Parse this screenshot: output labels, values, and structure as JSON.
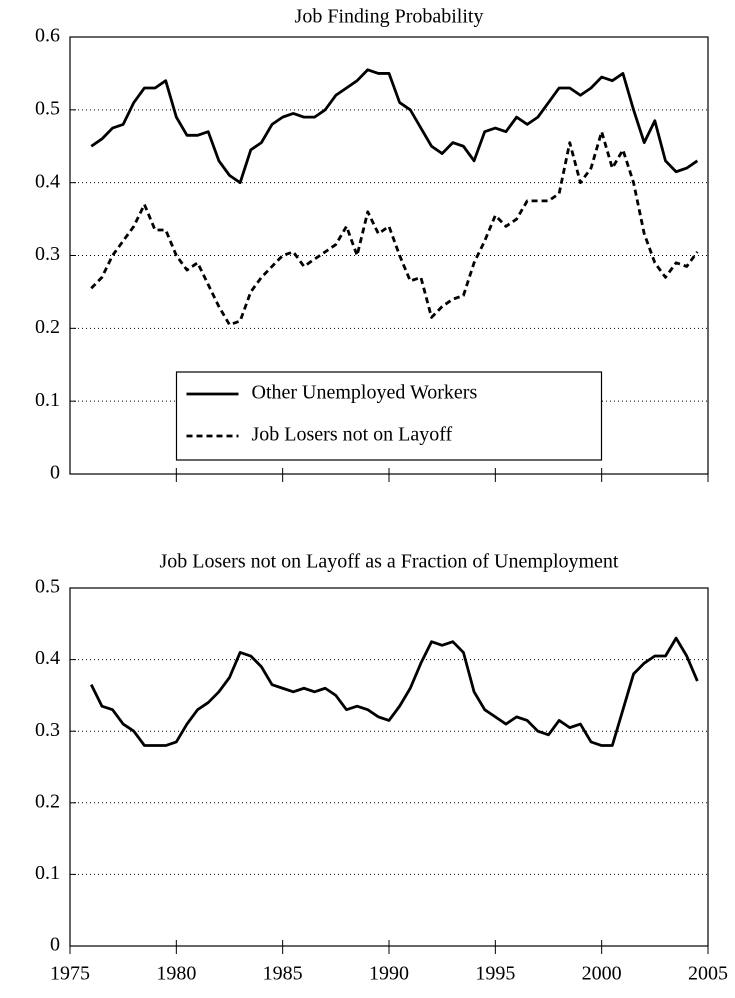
{
  "chart_data": [
    {
      "type": "line",
      "title": "Job Finding Probability",
      "x": [
        1976,
        1976.5,
        1977,
        1977.5,
        1978,
        1978.5,
        1979,
        1979.5,
        1980,
        1980.5,
        1981,
        1981.5,
        1982,
        1982.5,
        1983,
        1983.5,
        1984,
        1984.5,
        1985,
        1985.5,
        1986,
        1986.5,
        1987,
        1987.5,
        1988,
        1988.5,
        1989,
        1989.5,
        1990,
        1990.5,
        1991,
        1991.5,
        1992,
        1992.5,
        1993,
        1993.5,
        1994,
        1994.5,
        1995,
        1995.5,
        1996,
        1996.5,
        1997,
        1997.5,
        1998,
        1998.5,
        1999,
        1999.5,
        2000,
        2000.5,
        2001,
        2001.5,
        2002,
        2002.5,
        2003,
        2003.5,
        2004,
        2004.5
      ],
      "series": [
        {
          "name": "Other Unemployed Workers",
          "color": "#000000",
          "linestyle": "solid",
          "values": [
            0.45,
            0.46,
            0.475,
            0.48,
            0.51,
            0.53,
            0.53,
            0.54,
            0.49,
            0.465,
            0.465,
            0.47,
            0.43,
            0.41,
            0.4,
            0.445,
            0.455,
            0.48,
            0.49,
            0.495,
            0.49,
            0.49,
            0.5,
            0.52,
            0.53,
            0.54,
            0.555,
            0.55,
            0.55,
            0.51,
            0.5,
            0.475,
            0.45,
            0.44,
            0.455,
            0.45,
            0.43,
            0.47,
            0.475,
            0.47,
            0.49,
            0.48,
            0.49,
            0.51,
            0.53,
            0.53,
            0.52,
            0.53,
            0.545,
            0.54,
            0.55,
            0.5,
            0.455,
            0.485,
            0.43,
            0.415,
            0.42,
            0.43
          ]
        },
        {
          "name": "Job Losers not on Layoff",
          "color": "#000000",
          "linestyle": "dashed",
          "values": [
            0.255,
            0.27,
            0.3,
            0.32,
            0.34,
            0.37,
            0.335,
            0.335,
            0.3,
            0.28,
            0.29,
            0.26,
            0.23,
            0.205,
            0.21,
            0.25,
            0.27,
            0.285,
            0.3,
            0.305,
            0.285,
            0.295,
            0.305,
            0.315,
            0.34,
            0.3,
            0.36,
            0.33,
            0.34,
            0.3,
            0.265,
            0.27,
            0.215,
            0.23,
            0.24,
            0.245,
            0.29,
            0.32,
            0.355,
            0.34,
            0.35,
            0.375,
            0.375,
            0.375,
            0.385,
            0.455,
            0.4,
            0.42,
            0.47,
            0.42,
            0.445,
            0.4,
            0.33,
            0.29,
            0.27,
            0.29,
            0.285,
            0.305
          ]
        }
      ],
      "xlim": [
        1975,
        2005
      ],
      "xticks": [
        1980,
        1985,
        1990,
        1995,
        2000,
        2005
      ],
      "ylim": [
        0,
        0.6
      ],
      "yticks": [
        0,
        0.1,
        0.2,
        0.3,
        0.4,
        0.5,
        0.6
      ],
      "grid": true,
      "legend": "lower center"
    },
    {
      "type": "line",
      "title": "Job Losers not on Layoff as a Fraction of Unemployment",
      "x": [
        1976,
        1976.5,
        1977,
        1977.5,
        1978,
        1978.5,
        1979,
        1979.5,
        1980,
        1980.5,
        1981,
        1981.5,
        1982,
        1982.5,
        1983,
        1983.5,
        1984,
        1984.5,
        1985,
        1985.5,
        1986,
        1986.5,
        1987,
        1987.5,
        1988,
        1988.5,
        1989,
        1989.5,
        1990,
        1990.5,
        1991,
        1991.5,
        1992,
        1992.5,
        1993,
        1993.5,
        1994,
        1994.5,
        1995,
        1995.5,
        1996,
        1996.5,
        1997,
        1997.5,
        1998,
        1998.5,
        1999,
        1999.5,
        2000,
        2000.5,
        2001,
        2001.5,
        2002,
        2002.5,
        2003,
        2003.5,
        2004,
        2004.5
      ],
      "values": [
        0.365,
        0.335,
        0.33,
        0.31,
        0.3,
        0.28,
        0.28,
        0.28,
        0.285,
        0.31,
        0.33,
        0.34,
        0.355,
        0.375,
        0.41,
        0.405,
        0.39,
        0.365,
        0.36,
        0.355,
        0.36,
        0.355,
        0.36,
        0.35,
        0.33,
        0.335,
        0.33,
        0.32,
        0.315,
        0.335,
        0.36,
        0.395,
        0.425,
        0.42,
        0.425,
        0.41,
        0.355,
        0.33,
        0.32,
        0.31,
        0.32,
        0.315,
        0.3,
        0.295,
        0.315,
        0.305,
        0.31,
        0.285,
        0.28,
        0.28,
        0.33,
        0.38,
        0.395,
        0.405,
        0.405,
        0.43,
        0.405,
        0.37
      ],
      "color": "#000000",
      "xlim": [
        1975,
        2005
      ],
      "xticks": [
        1975,
        1980,
        1985,
        1990,
        1995,
        2000,
        2005
      ],
      "ylim": [
        0,
        0.5
      ],
      "yticks": [
        0,
        0.1,
        0.2,
        0.3,
        0.4,
        0.5
      ],
      "grid": true
    }
  ]
}
